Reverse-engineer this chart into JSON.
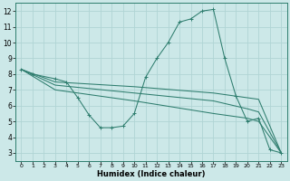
{
  "bg_color": "#cce8e8",
  "grid_color": "#b0d4d4",
  "line_color": "#2e7d6e",
  "xlabel": "Humidex (Indice chaleur)",
  "xlim": [
    -0.5,
    23.5
  ],
  "ylim": [
    2.5,
    12.5
  ],
  "xticks": [
    0,
    1,
    2,
    3,
    4,
    5,
    6,
    7,
    8,
    9,
    10,
    11,
    12,
    13,
    14,
    15,
    16,
    17,
    18,
    19,
    20,
    21,
    22,
    23
  ],
  "yticks": [
    3,
    4,
    5,
    6,
    7,
    8,
    9,
    10,
    11,
    12
  ],
  "lines": [
    {
      "x": [
        0,
        1,
        3,
        4,
        5,
        6,
        7,
        8,
        9,
        10,
        11,
        12,
        13,
        14,
        15,
        16,
        17,
        18,
        19,
        20,
        21,
        22,
        23
      ],
      "y": [
        8.3,
        8.0,
        7.7,
        7.5,
        6.5,
        5.4,
        4.6,
        4.6,
        4.7,
        5.5,
        7.8,
        9.0,
        10.0,
        11.3,
        11.5,
        12.0,
        12.1,
        9.0,
        6.6,
        5.0,
        5.2,
        3.2,
        3.0
      ],
      "marker": true
    },
    {
      "x": [
        0,
        3,
        10,
        17,
        20,
        21,
        23
      ],
      "y": [
        8.3,
        7.5,
        7.2,
        6.8,
        6.5,
        6.4,
        3.0
      ],
      "marker": false
    },
    {
      "x": [
        0,
        3,
        10,
        17,
        20,
        21,
        23
      ],
      "y": [
        8.3,
        7.3,
        6.8,
        6.3,
        5.8,
        5.6,
        3.0
      ],
      "marker": false
    },
    {
      "x": [
        0,
        3,
        10,
        17,
        20,
        21,
        23
      ],
      "y": [
        8.3,
        7.0,
        6.3,
        5.5,
        5.2,
        5.0,
        3.0
      ],
      "marker": false
    }
  ]
}
